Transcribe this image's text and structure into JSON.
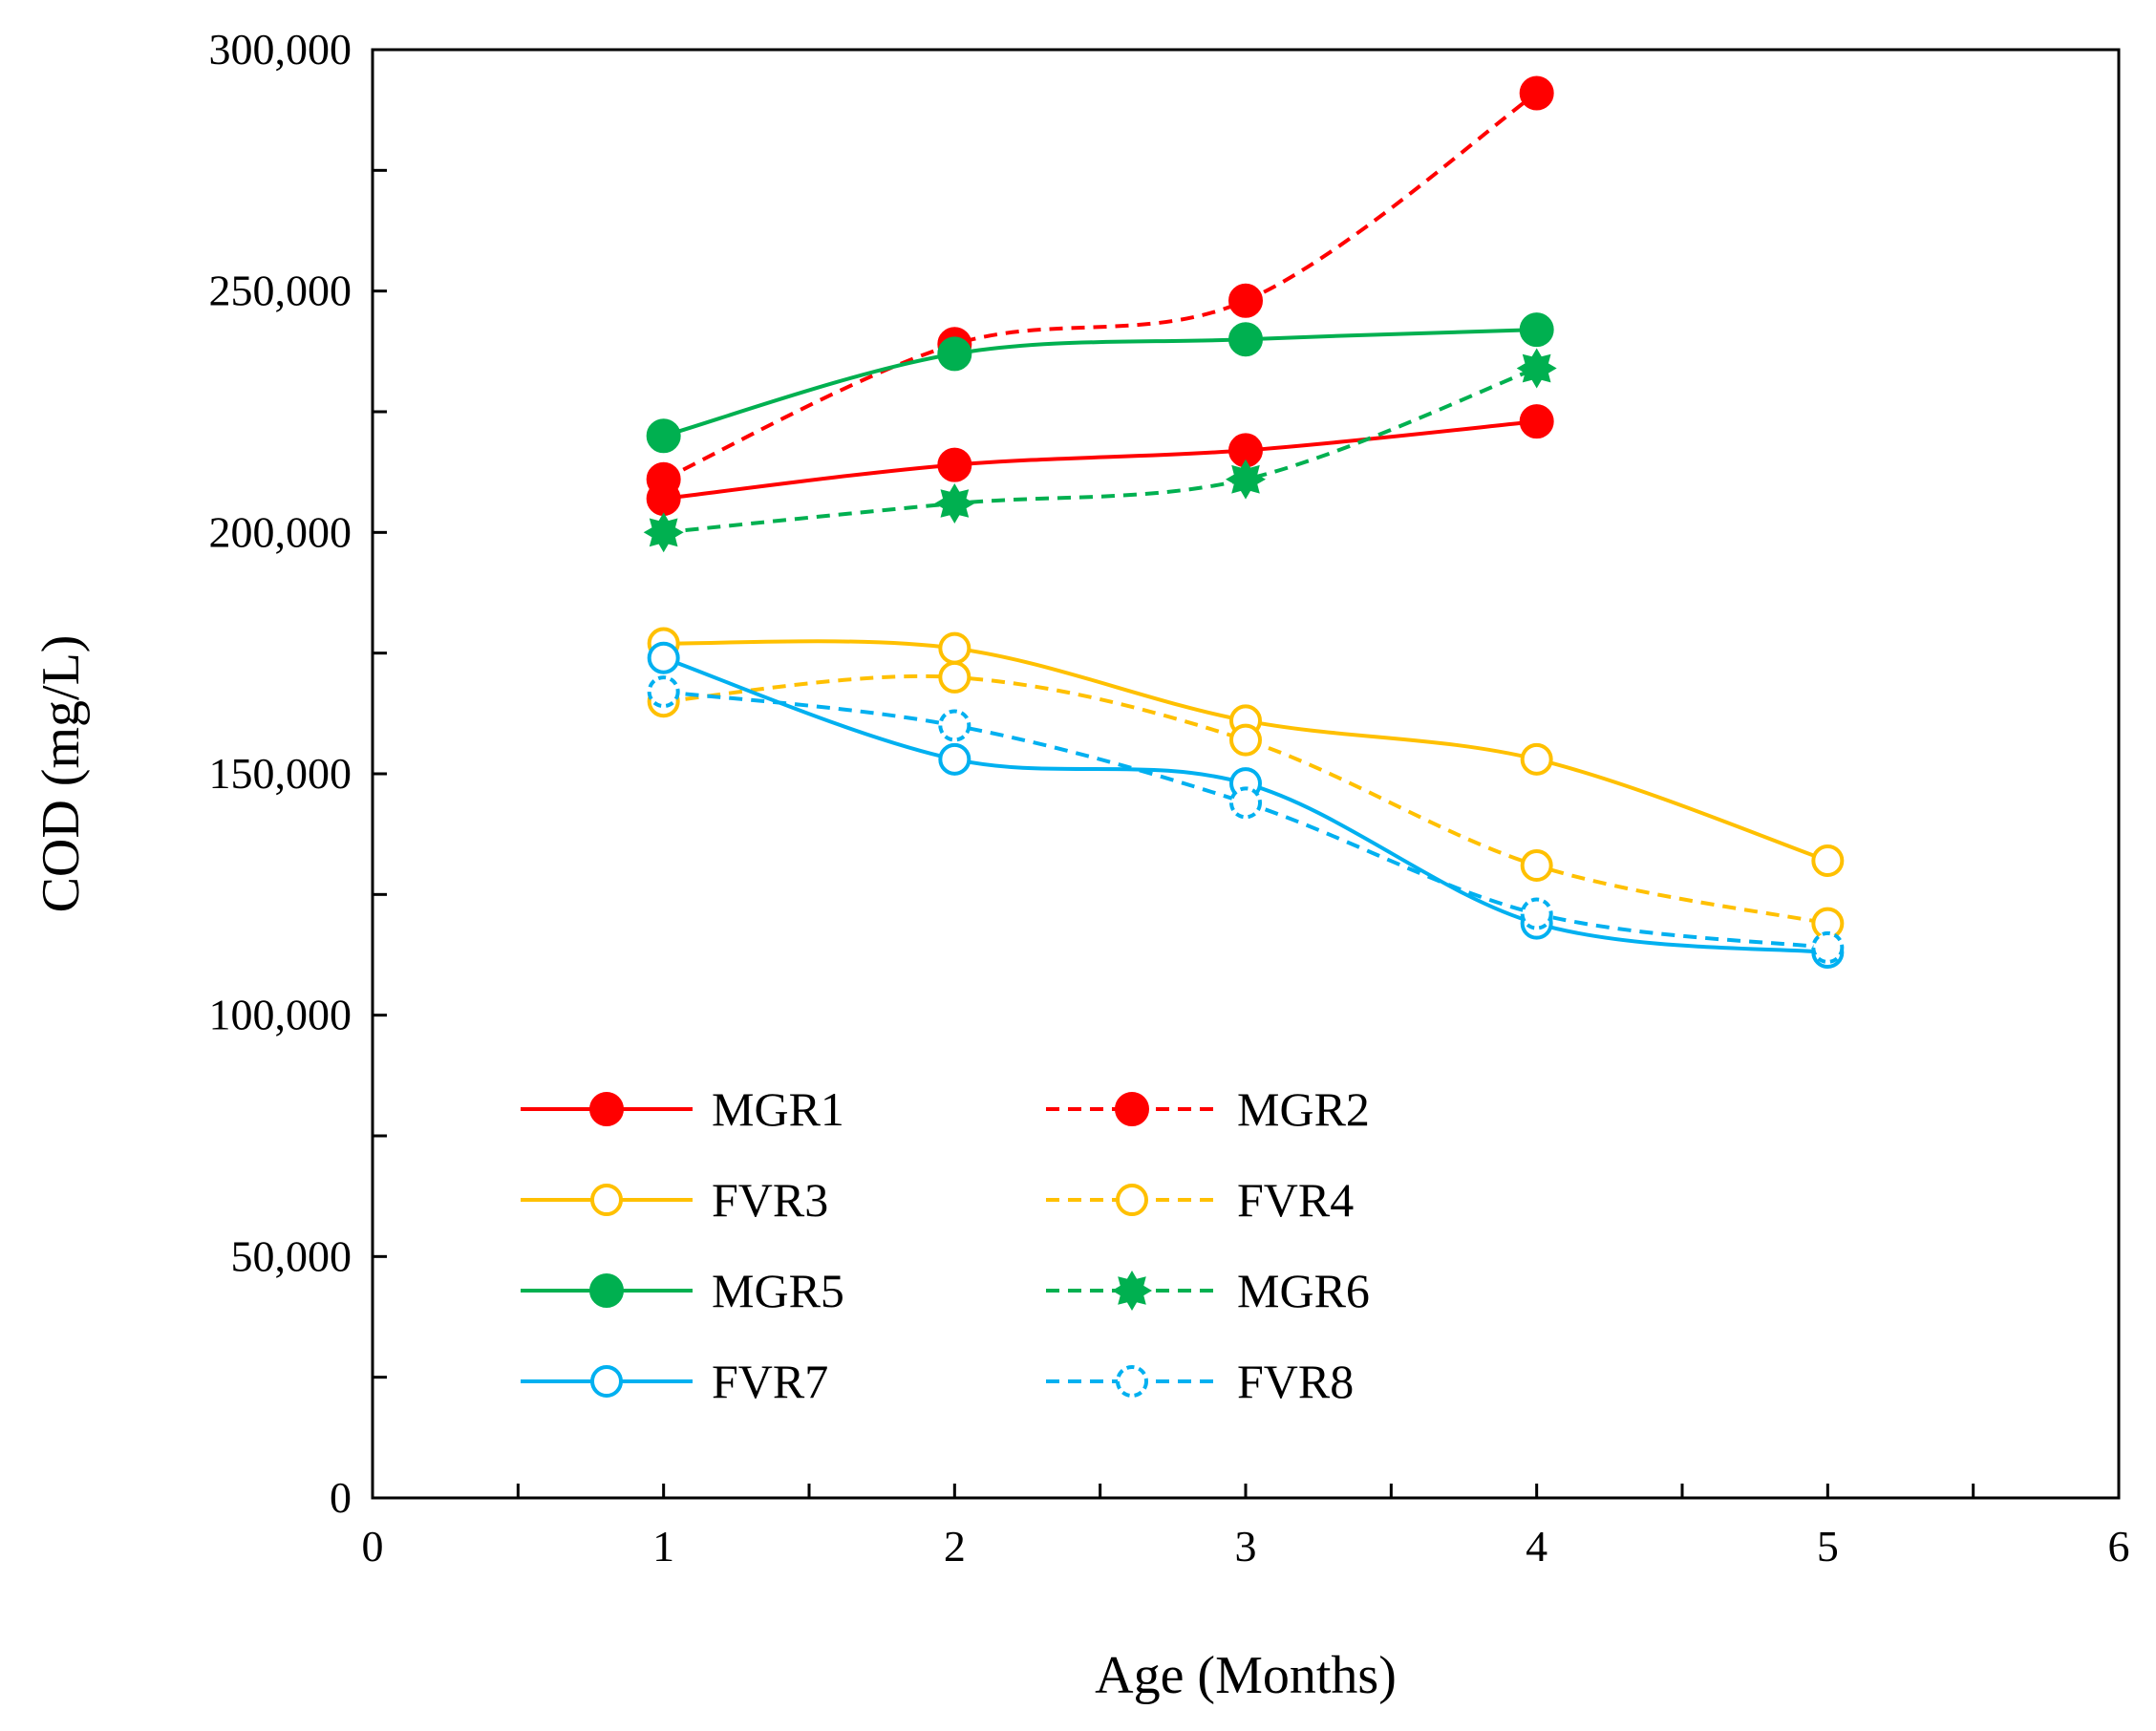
{
  "chart_data": {
    "type": "line",
    "title": "",
    "xlabel": "Age (Months)",
    "ylabel": "COD (mg/L)",
    "xlim": [
      0,
      6
    ],
    "ylim": [
      0,
      300000
    ],
    "xticks": [
      0,
      1,
      2,
      3,
      4,
      5,
      6
    ],
    "xtick_labels": [
      "0",
      "1",
      "2",
      "3",
      "4",
      "5",
      "6"
    ],
    "yticks": [
      0,
      50000,
      100000,
      150000,
      200000,
      250000,
      300000
    ],
    "ytick_labels": [
      "0",
      "50,000",
      "100,000",
      "150,000",
      "200,000",
      "250,000",
      "300,000"
    ],
    "grid": false,
    "legend_position": "bottom-left",
    "series": [
      {
        "name": "MGR1",
        "x": [
          1,
          2,
          3,
          4
        ],
        "values": [
          207000,
          214000,
          217000,
          223000
        ],
        "color": "#ff0000",
        "dashed": false,
        "marker": "filled-circle"
      },
      {
        "name": "MGR2",
        "x": [
          1,
          2,
          3,
          4
        ],
        "values": [
          211000,
          239000,
          248000,
          291000
        ],
        "color": "#ff0000",
        "dashed": true,
        "marker": "filled-circle"
      },
      {
        "name": "FVR3",
        "x": [
          1,
          2,
          3,
          4,
          5
        ],
        "values": [
          177000,
          176000,
          161000,
          153000,
          132000
        ],
        "color": "#ffc000",
        "dashed": false,
        "marker": "open-circle"
      },
      {
        "name": "FVR4",
        "x": [
          1,
          2,
          3,
          4,
          5
        ],
        "values": [
          165000,
          170000,
          157000,
          131000,
          119000
        ],
        "color": "#ffc000",
        "dashed": true,
        "marker": "open-circle"
      },
      {
        "name": "MGR5",
        "x": [
          1,
          2,
          3,
          4
        ],
        "values": [
          220000,
          237000,
          240000,
          242000
        ],
        "color": "#00b050",
        "dashed": false,
        "marker": "filled-circle"
      },
      {
        "name": "MGR6",
        "x": [
          1,
          2,
          3,
          4
        ],
        "values": [
          200000,
          206000,
          211000,
          234000
        ],
        "color": "#00b050",
        "dashed": true,
        "marker": "filled-star"
      },
      {
        "name": "FVR7",
        "x": [
          1,
          2,
          3,
          4,
          5
        ],
        "values": [
          174000,
          153000,
          148000,
          119000,
          113000
        ],
        "color": "#00b0f0",
        "dashed": false,
        "marker": "open-circle"
      },
      {
        "name": "FVR8",
        "x": [
          1,
          2,
          3,
          4,
          5
        ],
        "values": [
          167000,
          160000,
          144000,
          121000,
          114000
        ],
        "color": "#00b0f0",
        "dashed": true,
        "marker": "open-dashed-circle"
      }
    ]
  }
}
